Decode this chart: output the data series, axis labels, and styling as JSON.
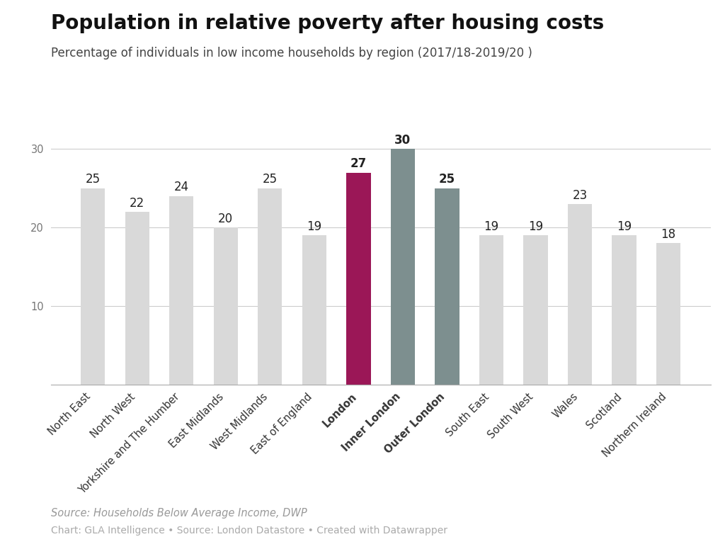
{
  "title": "Population in relative poverty after housing costs",
  "subtitle": "Percentage of individuals in low income households by region (2017/18-2019/20 )",
  "source_line1": "Source: Households Below Average Income, DWP",
  "source_line2": "Chart: GLA Intelligence • Source: London Datastore • Created with Datawrapper",
  "categories": [
    "North East",
    "North West",
    "Yorkshire and The Humber",
    "East Midlands",
    "West Midlands",
    "East of England",
    "London",
    "Inner London",
    "Outer London",
    "South East",
    "South West",
    "Wales",
    "Scotland",
    "Northern Ireland"
  ],
  "values": [
    25,
    22,
    24,
    20,
    25,
    19,
    27,
    30,
    25,
    19,
    19,
    23,
    19,
    18
  ],
  "bar_colors": [
    "#d9d9d9",
    "#d9d9d9",
    "#d9d9d9",
    "#d9d9d9",
    "#d9d9d9",
    "#d9d9d9",
    "#9b1757",
    "#7d8f8f",
    "#7d8f8f",
    "#d9d9d9",
    "#d9d9d9",
    "#d9d9d9",
    "#d9d9d9",
    "#d9d9d9"
  ],
  "bold_label_indices": [
    6,
    7,
    8
  ],
  "ylim": [
    0,
    35
  ],
  "yticks": [
    10,
    20,
    30
  ],
  "background_color": "#ffffff",
  "title_fontsize": 20,
  "subtitle_fontsize": 12,
  "bar_label_fontsize": 12,
  "tick_fontsize": 10.5,
  "source_fontsize": 10.5,
  "bar_width": 0.55
}
